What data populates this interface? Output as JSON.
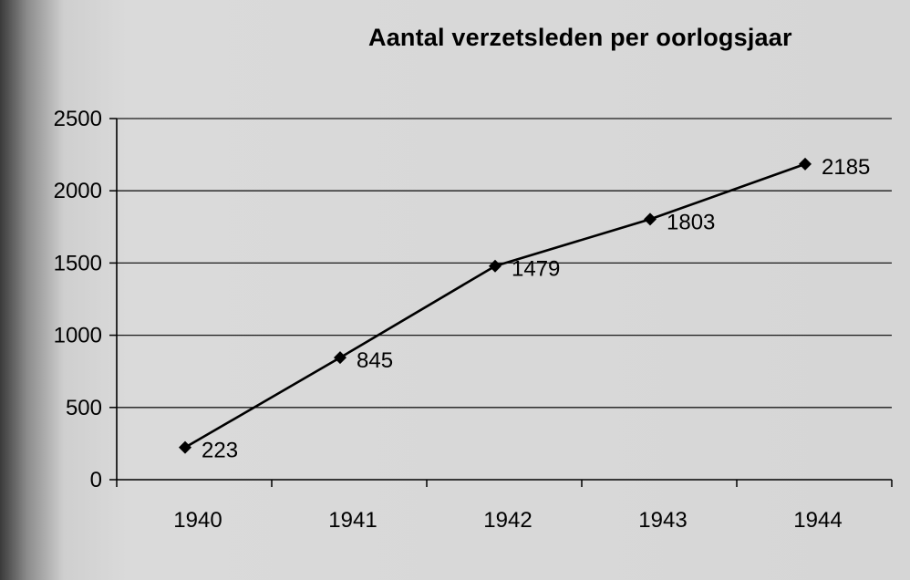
{
  "chart_data": {
    "type": "line",
    "title": "Aantal verzetsleden per oorlogsjaar",
    "xlabel": "",
    "ylabel": "",
    "categories": [
      "1940",
      "1941",
      "1942",
      "1943",
      "1944"
    ],
    "series": [
      {
        "values": [
          223,
          845,
          1479,
          1803,
          2185
        ],
        "color": "#000000"
      }
    ],
    "data_labels": [
      "223",
      "845",
      "1479",
      "1803",
      "2185"
    ],
    "ylim": [
      0,
      2500
    ],
    "yticks": [
      0,
      500,
      1000,
      1500,
      2000,
      2500
    ],
    "ytick_labels": [
      "0",
      "500",
      "1000",
      "1500",
      "2000",
      "2500"
    ],
    "marker": "diamond",
    "grid": true,
    "legend": "none"
  }
}
